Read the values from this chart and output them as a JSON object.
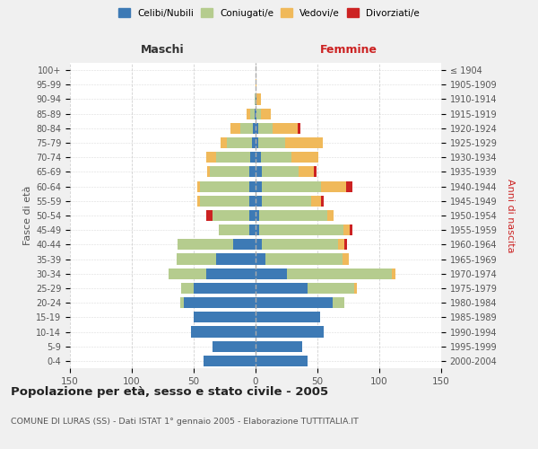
{
  "age_groups": [
    "100+",
    "95-99",
    "90-94",
    "85-89",
    "80-84",
    "75-79",
    "70-74",
    "65-69",
    "60-64",
    "55-59",
    "50-54",
    "45-49",
    "40-44",
    "35-39",
    "30-34",
    "25-29",
    "20-24",
    "15-19",
    "10-14",
    "5-9",
    "0-4"
  ],
  "birth_years": [
    "≤ 1904",
    "1905-1909",
    "1910-1914",
    "1915-1919",
    "1920-1924",
    "1925-1929",
    "1930-1934",
    "1935-1939",
    "1940-1944",
    "1945-1949",
    "1950-1954",
    "1955-1959",
    "1960-1964",
    "1965-1969",
    "1970-1974",
    "1975-1979",
    "1980-1984",
    "1985-1989",
    "1990-1994",
    "1995-1999",
    "2000-2004"
  ],
  "maschi_celibi": [
    0,
    0,
    0,
    1,
    2,
    3,
    4,
    5,
    5,
    5,
    5,
    5,
    18,
    32,
    40,
    50,
    58,
    50,
    52,
    35,
    42
  ],
  "maschi_coniugati": [
    0,
    0,
    1,
    3,
    10,
    20,
    28,
    32,
    40,
    40,
    30,
    25,
    45,
    32,
    30,
    10,
    3,
    0,
    0,
    0,
    0
  ],
  "maschi_vedovi": [
    0,
    0,
    0,
    3,
    8,
    5,
    8,
    2,
    2,
    2,
    0,
    0,
    0,
    0,
    0,
    0,
    0,
    0,
    0,
    0,
    0
  ],
  "maschi_divorziati": [
    0,
    0,
    0,
    0,
    0,
    0,
    0,
    0,
    0,
    0,
    5,
    0,
    0,
    0,
    0,
    0,
    0,
    0,
    0,
    0,
    0
  ],
  "femmine_nubili": [
    0,
    0,
    1,
    1,
    2,
    2,
    4,
    5,
    5,
    5,
    3,
    3,
    5,
    8,
    25,
    42,
    62,
    52,
    55,
    38,
    42
  ],
  "femmine_coniugate": [
    0,
    0,
    0,
    3,
    12,
    22,
    25,
    30,
    48,
    40,
    55,
    68,
    62,
    62,
    85,
    38,
    10,
    0,
    0,
    0,
    0
  ],
  "femmine_vedove": [
    0,
    1,
    3,
    8,
    20,
    30,
    22,
    12,
    20,
    8,
    5,
    5,
    5,
    5,
    3,
    2,
    0,
    0,
    0,
    0,
    0
  ],
  "femmine_divorziate": [
    0,
    0,
    0,
    0,
    2,
    0,
    0,
    2,
    5,
    2,
    0,
    2,
    2,
    0,
    0,
    0,
    0,
    0,
    0,
    0,
    0
  ],
  "colors": {
    "celibi_nubili": "#3d7ab5",
    "coniugati": "#b5cc8e",
    "vedovi": "#f0b95a",
    "divorziati": "#cc2222"
  },
  "title": "Popolazione per età, sesso e stato civile - 2005",
  "subtitle": "COMUNE DI LURAS (SS) - Dati ISTAT 1° gennaio 2005 - Elaborazione TUTTITALIA.IT",
  "bg_color": "#f0f0f0",
  "plot_bg_color": "#ffffff"
}
